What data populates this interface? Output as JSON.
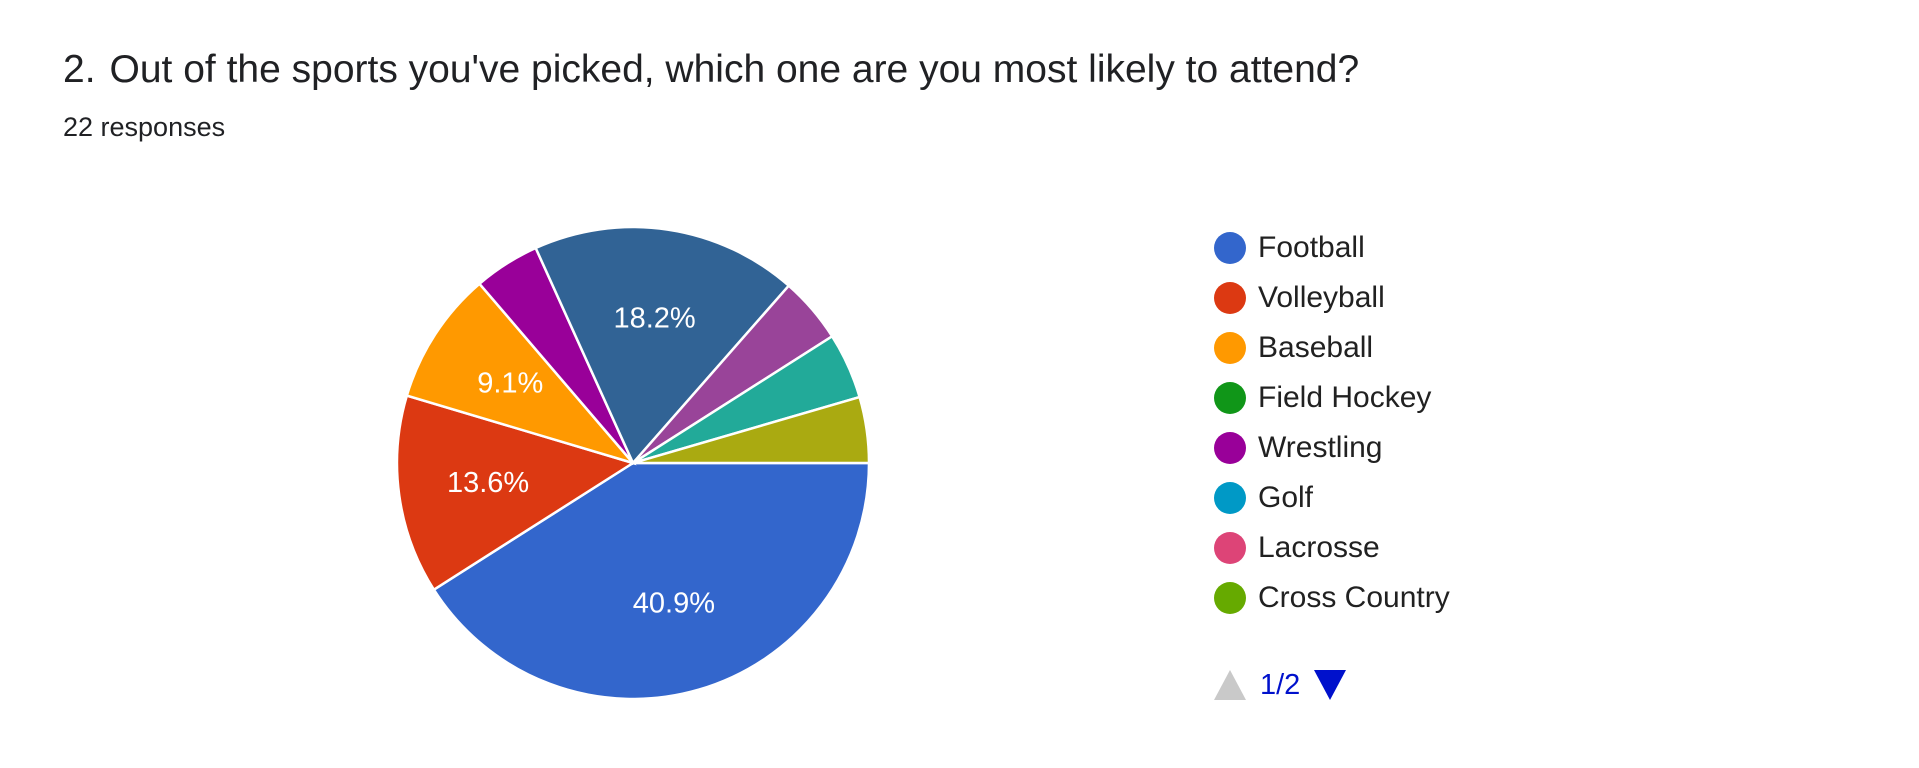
{
  "question": {
    "number": "2.",
    "text": "Out of the sports you've picked, which one are you most likely to attend?",
    "responses": "22 responses"
  },
  "chart_data": {
    "type": "pie",
    "start_angle_deg": 90,
    "direction": "clockwise",
    "slices": [
      {
        "name": "Football",
        "value": 40.9,
        "label": "40.9%",
        "color": "#3366cc"
      },
      {
        "name": "Volleyball",
        "value": 13.6,
        "label": "13.6%",
        "color": "#dc3912"
      },
      {
        "name": "Baseball",
        "value": 9.1,
        "label": "9.1%",
        "color": "#ff9900"
      },
      {
        "name": "Wrestling",
        "value": 4.5,
        "label": "",
        "color": "#990099"
      },
      {
        "name": "",
        "value": 18.2,
        "label": "18.2%",
        "color": "#316395"
      },
      {
        "name": "",
        "value": 4.5,
        "label": "",
        "color": "#994499"
      },
      {
        "name": "",
        "value": 4.5,
        "label": "",
        "color": "#22aa99"
      },
      {
        "name": "",
        "value": 4.5,
        "label": "",
        "color": "#aaaa11"
      }
    ],
    "legend": {
      "position": "right",
      "items": [
        {
          "name": "Football",
          "color": "#3366cc"
        },
        {
          "name": "Volleyball",
          "color": "#dc3912"
        },
        {
          "name": "Baseball",
          "color": "#ff9900"
        },
        {
          "name": "Field Hockey",
          "color": "#109618"
        },
        {
          "name": "Wrestling",
          "color": "#990099"
        },
        {
          "name": "Golf",
          "color": "#0099c6"
        },
        {
          "name": "Lacrosse",
          "color": "#dd4477"
        },
        {
          "name": "Cross Country",
          "color": "#66aa00"
        }
      ],
      "page": "1/2"
    }
  }
}
